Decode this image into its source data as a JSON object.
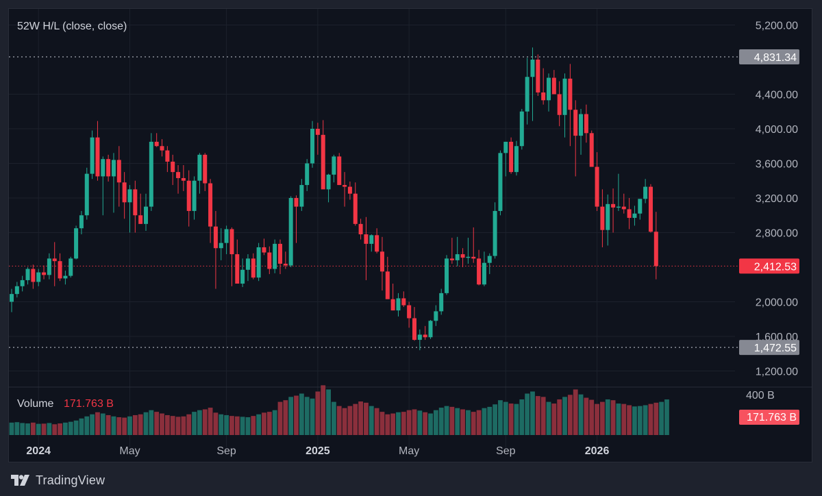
{
  "brand": {
    "name": "TradingView"
  },
  "colors": {
    "up": "#22ab94",
    "down": "#f23645",
    "up_vol": "#1d6b63",
    "down_vol": "#8b2f3c",
    "grid": "#1c212c",
    "text": "#b2b5be",
    "bg": "#0f131d"
  },
  "chart_data": {
    "type": "candlestick",
    "interval": "weekly",
    "legend": {
      "indicator_label": "52W H/L (close, close)"
    },
    "y_axis": {
      "ticks": [
        "5,200.00",
        "4,400.00",
        "4,000.00",
        "3,600.00",
        "3,200.00",
        "2,800.00",
        "2,000.00",
        "1,600.00",
        "1,200.00"
      ],
      "tick_values": [
        5200,
        4400,
        4000,
        3600,
        3200,
        2800,
        2000,
        1600,
        1200
      ],
      "range": [
        1000,
        5400
      ]
    },
    "x_axis": {
      "labels": [
        {
          "text": "2024",
          "bold": true,
          "index": 5
        },
        {
          "text": "May",
          "bold": false,
          "index": 22
        },
        {
          "text": "Sep",
          "bold": false,
          "index": 40
        },
        {
          "text": "2025",
          "bold": true,
          "index": 57
        },
        {
          "text": "May",
          "bold": false,
          "index": 74
        },
        {
          "text": "Sep",
          "bold": false,
          "index": 92
        },
        {
          "text": "2026",
          "bold": true,
          "index": 109
        }
      ]
    },
    "markers": [
      {
        "label": "4,831.34",
        "value": 4831.34,
        "type": "52w-high"
      },
      {
        "label": "1,472.55",
        "value": 1472.55,
        "type": "52w-low"
      },
      {
        "label": "2,412.53",
        "value": 2412.53,
        "type": "last-price"
      }
    ],
    "volume": {
      "title": "Volume",
      "value_label": "171.763 B",
      "axis_label": "400 B",
      "badge_label": "171.763 B"
    },
    "candles": [
      [
        2000,
        2150,
        1880,
        2090
      ],
      [
        2090,
        2230,
        2050,
        2180
      ],
      [
        2180,
        2300,
        2120,
        2250
      ],
      [
        2250,
        2400,
        2200,
        2380
      ],
      [
        2380,
        2430,
        2150,
        2230
      ],
      [
        2230,
        2380,
        2180,
        2340
      ],
      [
        2340,
        2420,
        2260,
        2310
      ],
      [
        2310,
        2560,
        2260,
        2500
      ],
      [
        2500,
        2690,
        2180,
        2470
      ],
      [
        2470,
        2560,
        2240,
        2270
      ],
      [
        2270,
        2360,
        2200,
        2300
      ],
      [
        2300,
        2520,
        2280,
        2500
      ],
      [
        2500,
        2880,
        2490,
        2850
      ],
      [
        2850,
        3050,
        2780,
        3000
      ],
      [
        3000,
        3550,
        2950,
        3480
      ],
      [
        3480,
        3980,
        3420,
        3900
      ],
      [
        3900,
        4090,
        3400,
        3450
      ],
      [
        3450,
        3680,
        3000,
        3650
      ],
      [
        3650,
        3700,
        3390,
        3450
      ],
      [
        3450,
        3720,
        3030,
        3640
      ],
      [
        3640,
        3800,
        3100,
        3380
      ],
      [
        3380,
        3500,
        2960,
        3150
      ],
      [
        3150,
        3350,
        2800,
        3300
      ],
      [
        3300,
        3400,
        2800,
        3000
      ],
      [
        3000,
        3250,
        2900,
        2900
      ],
      [
        2900,
        3250,
        2820,
        3100
      ],
      [
        3100,
        3950,
        3050,
        3850
      ],
      [
        3850,
        3950,
        3790,
        3800
      ],
      [
        3800,
        3880,
        3680,
        3750
      ],
      [
        3750,
        3800,
        3500,
        3620
      ],
      [
        3620,
        3700,
        3350,
        3500
      ],
      [
        3500,
        3580,
        3250,
        3430
      ],
      [
        3430,
        3580,
        3280,
        3400
      ],
      [
        3400,
        3520,
        2870,
        3050
      ],
      [
        3050,
        3450,
        2950,
        3400
      ],
      [
        3400,
        3720,
        3250,
        3700
      ],
      [
        3700,
        3720,
        3280,
        3370
      ],
      [
        3370,
        3420,
        2680,
        2870
      ],
      [
        2870,
        3050,
        2150,
        2620
      ],
      [
        2620,
        2850,
        2480,
        2680
      ],
      [
        2680,
        2880,
        2550,
        2840
      ],
      [
        2840,
        2860,
        2180,
        2550
      ],
      [
        2550,
        2720,
        2250,
        2210
      ],
      [
        2210,
        2500,
        2170,
        2370
      ],
      [
        2370,
        2550,
        2240,
        2500
      ],
      [
        2500,
        2560,
        2260,
        2280
      ],
      [
        2280,
        2680,
        2240,
        2630
      ],
      [
        2630,
        2730,
        2540,
        2570
      ],
      [
        2570,
        2640,
        2320,
        2380
      ],
      [
        2380,
        2720,
        2330,
        2670
      ],
      [
        2670,
        2720,
        2320,
        2440
      ],
      [
        2440,
        2580,
        2380,
        2420
      ],
      [
        2420,
        3220,
        2400,
        3200
      ],
      [
        3200,
        3230,
        2680,
        3100
      ],
      [
        3100,
        3420,
        3050,
        3350
      ],
      [
        3350,
        3650,
        3280,
        3600
      ],
      [
        3600,
        4090,
        3550,
        4000
      ],
      [
        4000,
        4070,
        3700,
        3930
      ],
      [
        3930,
        4100,
        3310,
        3300
      ],
      [
        3300,
        3480,
        3150,
        3470
      ],
      [
        3470,
        3700,
        3380,
        3680
      ],
      [
        3680,
        3720,
        3350,
        3350
      ],
      [
        3350,
        3500,
        3100,
        3330
      ],
      [
        3330,
        3390,
        3180,
        3250
      ],
      [
        3250,
        3380,
        2880,
        2900
      ],
      [
        2900,
        2960,
        2720,
        2780
      ],
      [
        2780,
        2980,
        2250,
        2670
      ],
      [
        2670,
        2780,
        2580,
        2770
      ],
      [
        2770,
        2850,
        2560,
        2580
      ],
      [
        2580,
        2750,
        2130,
        2350
      ],
      [
        2350,
        2520,
        2060,
        2030
      ],
      [
        2030,
        2210,
        1900,
        1900
      ],
      [
        1900,
        2100,
        1830,
        2040
      ],
      [
        2040,
        2120,
        1940,
        1960
      ],
      [
        1960,
        2000,
        1700,
        1810
      ],
      [
        1810,
        1940,
        1550,
        1560
      ],
      [
        1560,
        1680,
        1440,
        1620
      ],
      [
        1620,
        1720,
        1560,
        1590
      ],
      [
        1590,
        1790,
        1570,
        1780
      ],
      [
        1780,
        1960,
        1720,
        1890
      ],
      [
        1890,
        2150,
        1850,
        2100
      ],
      [
        2100,
        2540,
        2080,
        2500
      ],
      [
        2500,
        2740,
        2440,
        2480
      ],
      [
        2480,
        2750,
        2410,
        2550
      ],
      [
        2550,
        2620,
        2400,
        2510
      ],
      [
        2510,
        2740,
        2440,
        2520
      ],
      [
        2520,
        2860,
        2450,
        2500
      ],
      [
        2500,
        2600,
        2190,
        2200
      ],
      [
        2200,
        2580,
        2180,
        2450
      ],
      [
        2450,
        2560,
        2320,
        2530
      ],
      [
        2530,
        3150,
        2500,
        3050
      ],
      [
        3050,
        3750,
        3000,
        3720
      ],
      [
        3720,
        3850,
        3450,
        3850
      ],
      [
        3850,
        3900,
        3480,
        3500
      ],
      [
        3500,
        3860,
        3460,
        3800
      ],
      [
        3800,
        4230,
        3760,
        4200
      ],
      [
        4200,
        4820,
        4050,
        4600
      ],
      [
        4600,
        4940,
        4090,
        4800
      ],
      [
        4800,
        4860,
        4380,
        4420
      ],
      [
        4420,
        4700,
        4280,
        4330
      ],
      [
        4330,
        4640,
        4200,
        4590
      ],
      [
        4590,
        4680,
        4400,
        4400
      ],
      [
        4400,
        4550,
        4030,
        4160
      ],
      [
        4160,
        4640,
        3900,
        4580
      ],
      [
        4580,
        4750,
        3800,
        4220
      ],
      [
        4220,
        4330,
        3450,
        3920
      ],
      [
        3920,
        4230,
        3700,
        4170
      ],
      [
        4170,
        4280,
        3840,
        3950
      ],
      [
        3950,
        3980,
        3580,
        3560
      ],
      [
        3560,
        3730,
        3050,
        3100
      ],
      [
        3100,
        3300,
        2630,
        2830
      ],
      [
        2830,
        3240,
        2650,
        3130
      ],
      [
        3130,
        3310,
        2800,
        3090
      ],
      [
        3090,
        3480,
        3050,
        3100
      ],
      [
        3100,
        3250,
        3020,
        3070
      ],
      [
        3070,
        3200,
        2840,
        2970
      ],
      [
        2970,
        3110,
        2880,
        3020
      ],
      [
        3020,
        3170,
        2950,
        3190
      ],
      [
        3190,
        3420,
        3140,
        3330
      ],
      [
        3330,
        3360,
        2800,
        2810
      ],
      [
        2810,
        3040,
        2260,
        2412.53
      ]
    ],
    "volumes": [
      60,
      62,
      58,
      56,
      60,
      54,
      55,
      58,
      52,
      56,
      60,
      64,
      70,
      80,
      90,
      100,
      110,
      104,
      96,
      90,
      86,
      84,
      90,
      96,
      100,
      110,
      120,
      112,
      104,
      96,
      92,
      88,
      90,
      100,
      112,
      120,
      124,
      132,
      108,
      100,
      96,
      92,
      90,
      88,
      86,
      92,
      100,
      108,
      112,
      120,
      160,
      168,
      184,
      190,
      200,
      184,
      176,
      210,
      240,
      220,
      160,
      140,
      130,
      140,
      150,
      162,
      156,
      140,
      130,
      112,
      100,
      104,
      110,
      112,
      120,
      124,
      118,
      110,
      104,
      120,
      132,
      140,
      136,
      130,
      124,
      120,
      112,
      120,
      130,
      136,
      148,
      168,
      160,
      152,
      150,
      172,
      200,
      210,
      188,
      184,
      160,
      152,
      172,
      184,
      194,
      220,
      196,
      180,
      170,
      150,
      160,
      172,
      168,
      152,
      150,
      144,
      138,
      140,
      144,
      150,
      156,
      160,
      171.763
    ]
  }
}
